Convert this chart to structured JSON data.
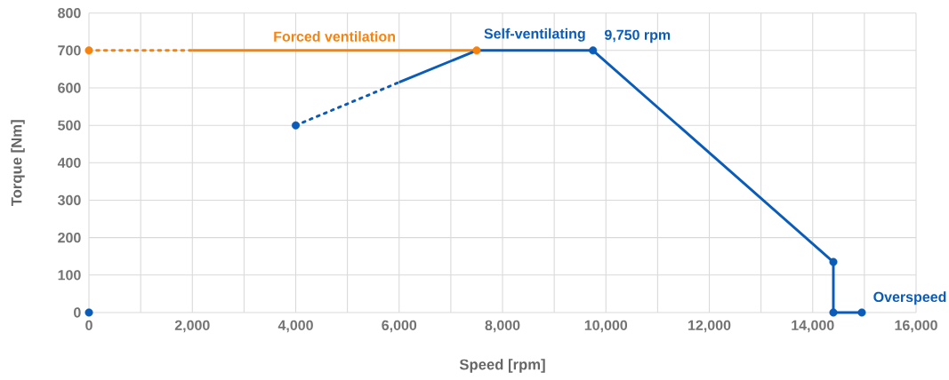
{
  "chart_data": {
    "type": "line",
    "xlabel": "Speed [rpm]",
    "ylabel": "Torque [Nm]",
    "xlim": [
      0,
      16000
    ],
    "ylim": [
      0,
      800
    ],
    "xticks": [
      {
        "value": 0,
        "label": "0"
      },
      {
        "value": 1000,
        "label": null
      },
      {
        "value": 2000,
        "label": "2,000"
      },
      {
        "value": 3000,
        "label": null
      },
      {
        "value": 4000,
        "label": "4,000"
      },
      {
        "value": 5000,
        "label": null
      },
      {
        "value": 6000,
        "label": "6,000"
      },
      {
        "value": 7000,
        "label": null
      },
      {
        "value": 8000,
        "label": "8,000"
      },
      {
        "value": 9000,
        "label": null
      },
      {
        "value": 10000,
        "label": "10,000"
      },
      {
        "value": 11000,
        "label": null
      },
      {
        "value": 12000,
        "label": "12,000"
      },
      {
        "value": 13000,
        "label": null
      },
      {
        "value": 14000,
        "label": "14,000"
      },
      {
        "value": 15000,
        "label": null
      },
      {
        "value": 16000,
        "label": "16,000"
      }
    ],
    "yticks": [
      0,
      100,
      200,
      300,
      400,
      500,
      600,
      700,
      800
    ],
    "grid": true,
    "series": [
      {
        "color": "#f7830f",
        "line_style": "dotted",
        "x": [
          0,
          2000
        ],
        "values": [
          700,
          700
        ]
      },
      {
        "name": "Forced ventilation",
        "color": "#f7830f",
        "line_style": "solid",
        "x": [
          2000,
          7500
        ],
        "values": [
          700,
          700
        ]
      },
      {
        "type": "scatter",
        "color": "#f7830f",
        "x": [
          0,
          7500
        ],
        "values": [
          700,
          700
        ]
      },
      {
        "color": "#0a5cb8",
        "line_style": "dotted",
        "x": [
          4000,
          6000
        ],
        "values": [
          500,
          615
        ]
      },
      {
        "name": "Self-ventilating",
        "color": "#0a5cb8",
        "line_style": "solid",
        "x": [
          6000,
          7500,
          9750,
          14400,
          14400,
          14950
        ],
        "values": [
          615,
          700,
          700,
          135,
          0,
          0
        ]
      },
      {
        "type": "scatter",
        "color": "#0a5cb8",
        "x": [
          0,
          4000,
          9750,
          14400,
          14400,
          14950
        ],
        "values": [
          0,
          500,
          700,
          135,
          0,
          0
        ]
      }
    ],
    "annotations": [
      {
        "text": "9,750 rpm",
        "x": 9750,
        "y": 700
      },
      {
        "text": "Overspeed",
        "x": 14950,
        "y": 0
      }
    ]
  }
}
